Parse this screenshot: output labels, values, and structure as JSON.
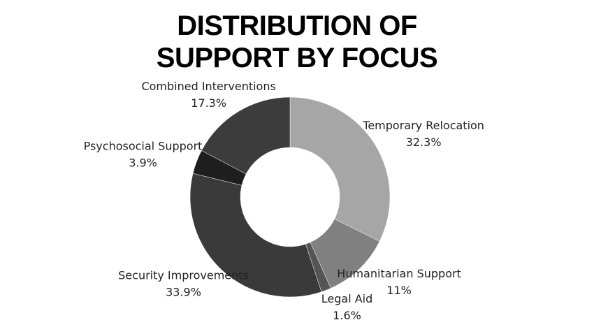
{
  "chart_data": {
    "type": "donut",
    "title": "DISTRIBUTION OF SUPPORT BY FOCUS",
    "categories": [
      "Temporary Relocation",
      "Humanitarian Support",
      "Legal Aid",
      "Security Improvements",
      "Psychosocial Support",
      "Combined Interventions"
    ],
    "values": [
      32.3,
      11,
      1.6,
      33.9,
      3.9,
      17.3
    ],
    "value_labels": [
      "32.3%",
      "11%",
      "1.6%",
      "33.9%",
      "3.9%",
      "17.3%"
    ],
    "colors": [
      "#a6a6a6",
      "#808080",
      "#555555",
      "#3a3a3a",
      "#1e1e1e",
      "#3c3c3c"
    ]
  }
}
